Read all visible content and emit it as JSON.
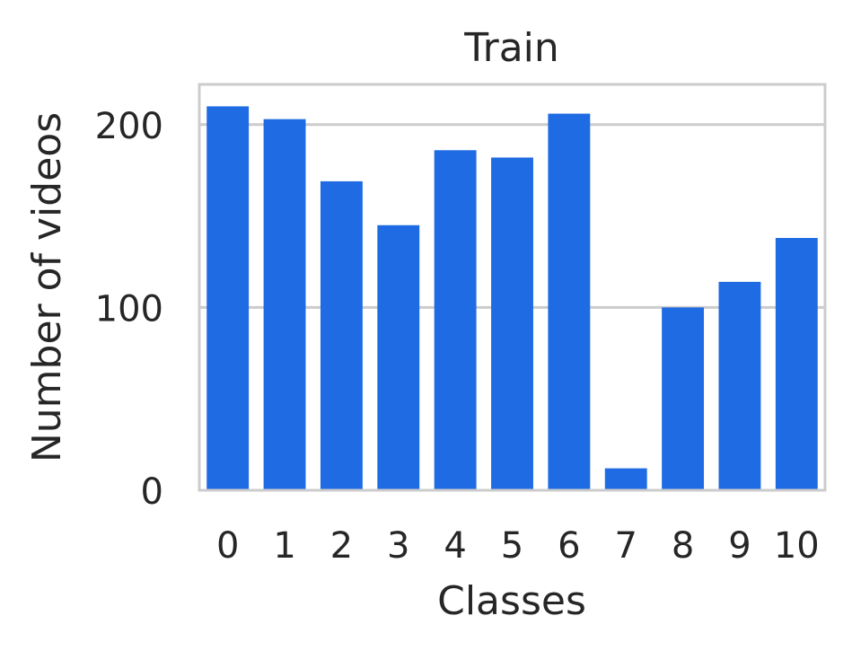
{
  "chart_data": {
    "type": "bar",
    "title": "Train",
    "xlabel": "Classes",
    "ylabel": "Number of videos",
    "categories": [
      "0",
      "1",
      "2",
      "3",
      "4",
      "5",
      "6",
      "7",
      "8",
      "9",
      "10"
    ],
    "values": [
      210,
      203,
      169,
      145,
      186,
      182,
      206,
      12,
      100,
      114,
      138
    ],
    "ylim": [
      0,
      222
    ],
    "yticks": [
      "0",
      "100",
      "200"
    ],
    "grid": true,
    "legend": "none",
    "colors": {
      "bar": "#1f6be3",
      "grid": "#cccccc",
      "frame": "#cccccc",
      "text": "#262626"
    }
  }
}
